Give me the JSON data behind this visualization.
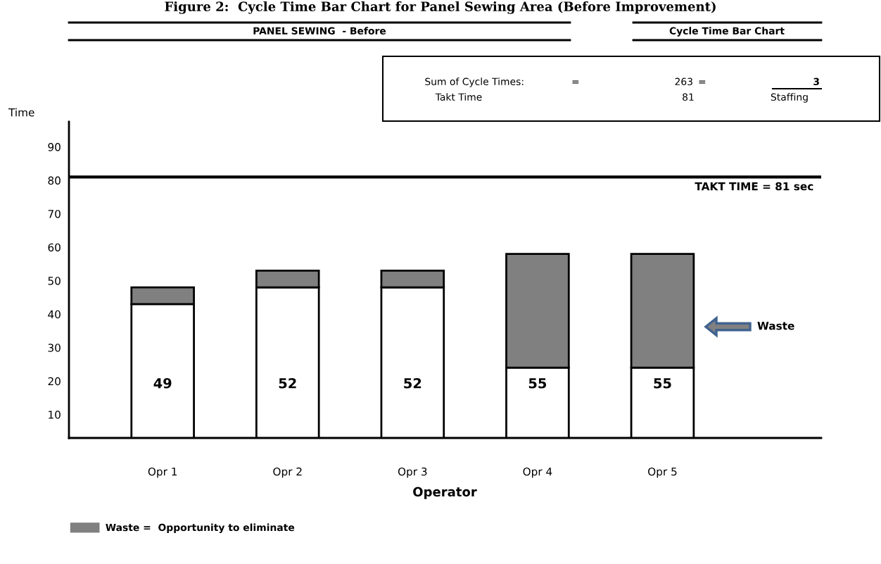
{
  "chart_data": {
    "type": "bar",
    "title": "Figure 2:  Cycle Time Bar Chart for Panel Sewing Area (Before Improvement)",
    "xlabel": "Operator",
    "ylabel": "Time",
    "categories": [
      "Opr 1",
      "Opr 2",
      "Opr 3",
      "Opr 4",
      "Opr 5"
    ],
    "stacked": true,
    "series": [
      {
        "color": "#ffffff",
        "values": [
          43,
          48,
          48,
          24,
          24
        ]
      },
      {
        "name": "Waste =  Opportunity to eliminate",
        "color": "#808080",
        "values": [
          5,
          5,
          5,
          34,
          34
        ]
      }
    ],
    "ylim": [
      3,
      97.5
    ],
    "yticks": [
      10,
      20,
      30,
      40,
      50,
      60,
      70,
      80,
      90
    ],
    "ref_lines": [
      {
        "axis": "y",
        "value": 81,
        "label": "TAKT TIME = 81 sec",
        "color": "#000000"
      }
    ],
    "annotations": [
      "PANEL SEWING  - Before",
      "Cycle Time Bar Chart",
      "Sum of Cycle Times:",
      "=",
      "263",
      "=",
      "3",
      "Takt Time",
      "81",
      "Staffing",
      "Waste",
      "49",
      "52",
      "52",
      "55",
      "55"
    ],
    "grid": false,
    "legend": "bottom left"
  }
}
